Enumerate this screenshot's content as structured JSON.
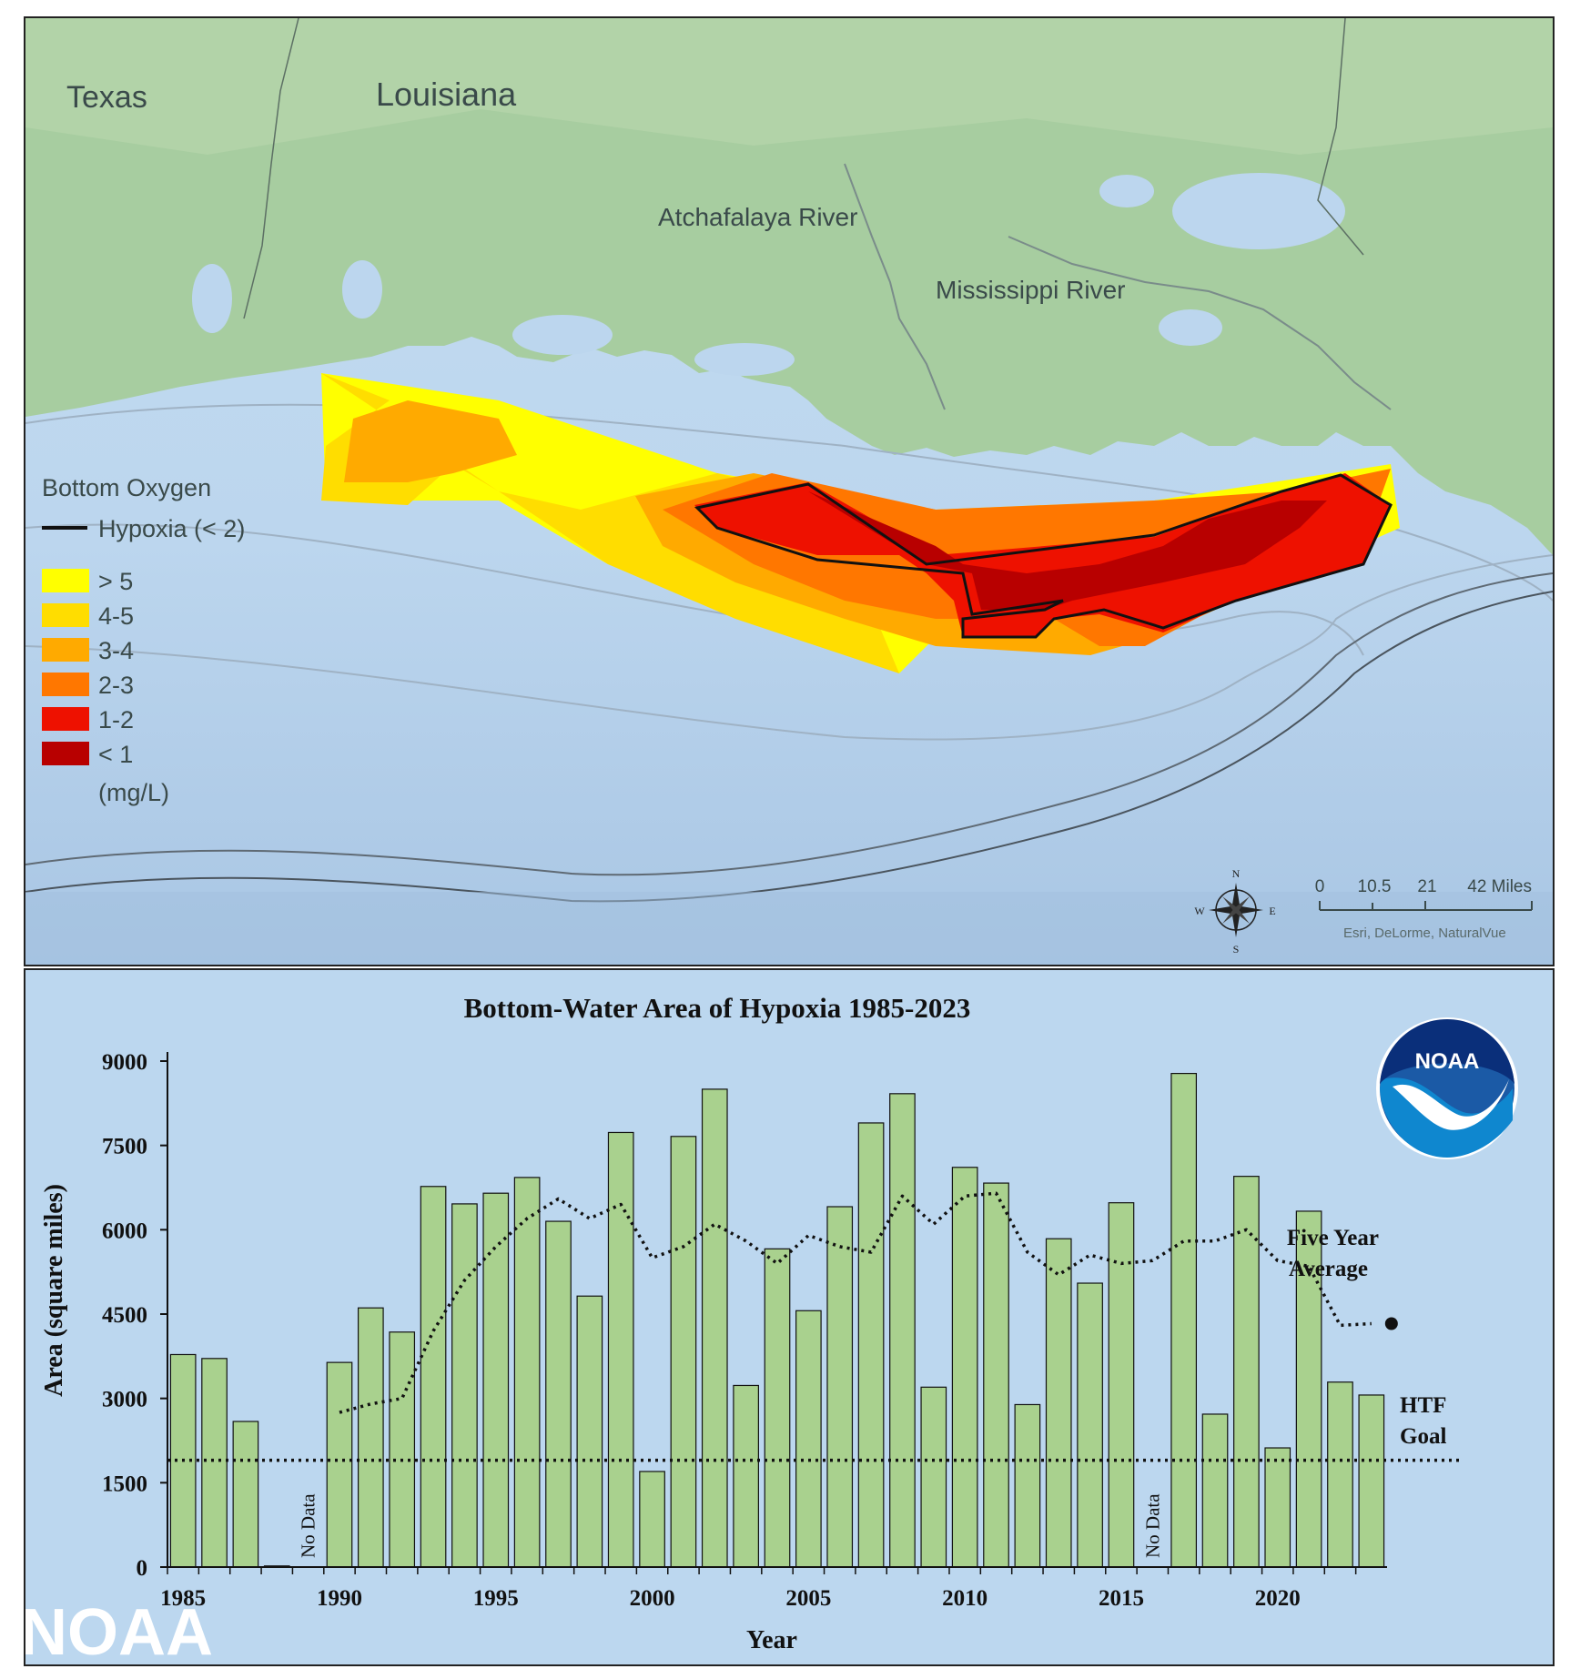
{
  "map": {
    "labels": {
      "texas": "Texas",
      "louisiana": "Louisiana",
      "atchafalaya": "Atchafalaya River",
      "mississippi": "Mississippi River"
    },
    "legend": {
      "title": "Bottom Oxygen",
      "hypoxia": "Hypoxia (< 2)",
      "units": "(mg/L)",
      "classes": [
        {
          "label": "> 5",
          "color": "#ffff00"
        },
        {
          "label": "4-5",
          "color": "#ffdd00"
        },
        {
          "label": "3-4",
          "color": "#ffaa00"
        },
        {
          "label": "2-3",
          "color": "#ff7700"
        },
        {
          "label": "1-2",
          "color": "#ee1100"
        },
        {
          "label": "< 1",
          "color": "#b80000"
        }
      ]
    },
    "scale": {
      "ticks": [
        "0",
        "10.5",
        "21",
        "42 Miles"
      ],
      "credit": "Esri, DeLorme, NaturalVue"
    },
    "compass": {
      "n": "N",
      "s": "S",
      "e": "E",
      "w": "W"
    }
  },
  "chart_data": {
    "type": "bar",
    "title": "Bottom-Water Area of Hypoxia 1985-2023",
    "xlabel": "Year",
    "ylabel": "Area (square miles)",
    "ylim": [
      0,
      9000
    ],
    "yticks": [
      0,
      1500,
      3000,
      4500,
      6000,
      7500,
      9000
    ],
    "xticks": [
      1985,
      1990,
      1995,
      2000,
      2005,
      2010,
      2015,
      2020
    ],
    "bar_color": "#a9d18e",
    "categories": [
      1985,
      1986,
      1987,
      1988,
      1989,
      1990,
      1991,
      1992,
      1993,
      1994,
      1995,
      1996,
      1997,
      1998,
      1999,
      2000,
      2001,
      2002,
      2003,
      2004,
      2005,
      2006,
      2007,
      2008,
      2009,
      2010,
      2011,
      2012,
      2013,
      2014,
      2015,
      2016,
      2017,
      2018,
      2019,
      2020,
      2021,
      2022,
      2023
    ],
    "values": [
      3780,
      3710,
      2590,
      20,
      null,
      3640,
      4610,
      4180,
      6770,
      6460,
      6650,
      6930,
      6150,
      4820,
      7730,
      1700,
      7660,
      8500,
      3230,
      5660,
      4560,
      6410,
      7900,
      8420,
      3200,
      7110,
      6830,
      2890,
      5840,
      5050,
      6480,
      null,
      8780,
      2720,
      6950,
      2120,
      6330,
      3290,
      3060
    ],
    "no_data": [
      {
        "year": 1989,
        "label": "No Data"
      },
      {
        "year": 2016,
        "label": "No Data"
      }
    ],
    "five_year_average": {
      "label_line1": "Five Year",
      "label_line2": "Average",
      "x": [
        1990,
        1991,
        1992,
        1993,
        1994,
        1995,
        1996,
        1997,
        1998,
        1999,
        2000,
        2001,
        2002,
        2003,
        2004,
        2005,
        2006,
        2007,
        2008,
        2009,
        2010,
        2011,
        2012,
        2013,
        2014,
        2015,
        2016,
        2017,
        2018,
        2019,
        2020,
        2021,
        2022,
        2023
      ],
      "y": [
        2750,
        2900,
        3000,
        4200,
        5100,
        5700,
        6200,
        6550,
        6200,
        6450,
        5500,
        5700,
        6100,
        5800,
        5400,
        5900,
        5700,
        5600,
        6600,
        6100,
        6600,
        6650,
        5600,
        5200,
        5550,
        5400,
        5450,
        5800,
        5800,
        6000,
        5450,
        5350,
        4300,
        4330
      ]
    },
    "htf_goal": {
      "value": 1900,
      "label_line1": "HTF",
      "label_line2": "Goal"
    },
    "logo_text": "NOAA",
    "watermark": "NOAA"
  }
}
